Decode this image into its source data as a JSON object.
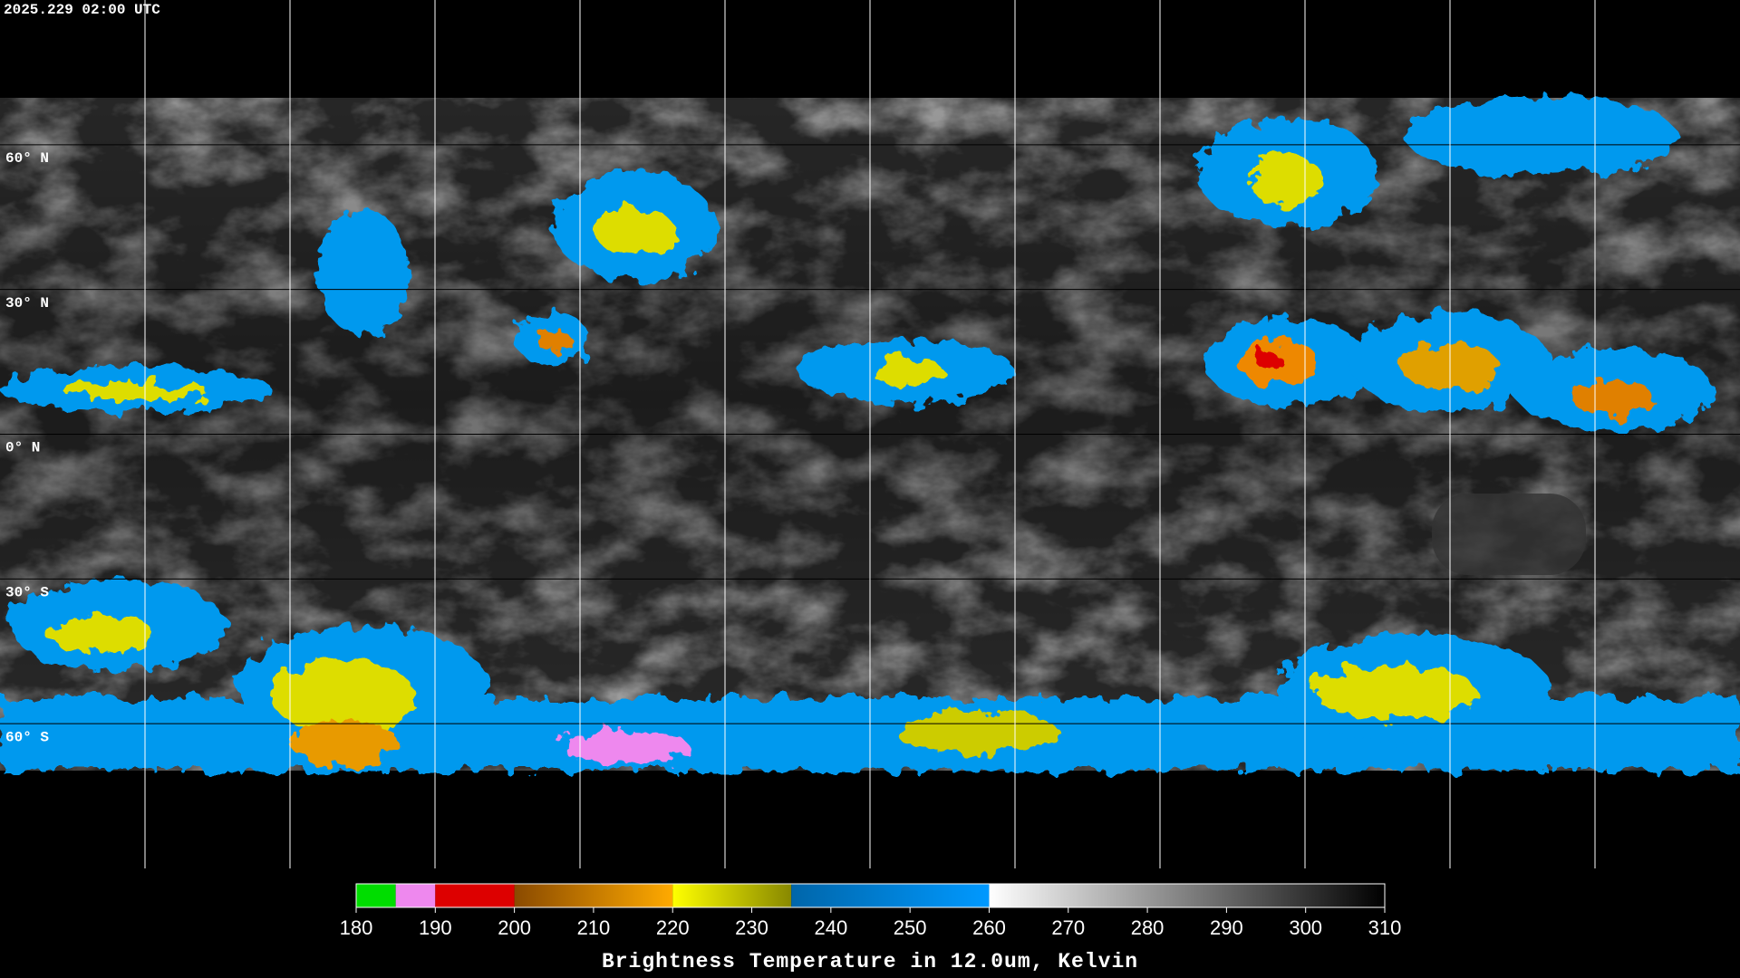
{
  "header": {
    "timestamp": "2025.229 02:00 UTC"
  },
  "map": {
    "latitude_labels": [
      "60° N",
      "30° N",
      "0° N",
      "30° S",
      "60° S"
    ]
  },
  "colorbar": {
    "title": "Brightness Temperature in 12.0um, Kelvin",
    "range": [
      180,
      310
    ],
    "ticks": [
      180,
      190,
      200,
      210,
      220,
      230,
      240,
      250,
      260,
      270,
      280,
      290,
      300,
      310
    ],
    "segments": [
      {
        "from": 180,
        "to": 185,
        "colors": [
          "#00dd00",
          "#00dd00"
        ]
      },
      {
        "from": 185,
        "to": 190,
        "colors": [
          "#ee88ee",
          "#ee88ee"
        ]
      },
      {
        "from": 190,
        "to": 200,
        "colors": [
          "#dd0000",
          "#dd0000"
        ]
      },
      {
        "from": 200,
        "to": 220,
        "colors": [
          "#8a4a00",
          "#ffaa00"
        ]
      },
      {
        "from": 220,
        "to": 235,
        "colors": [
          "#ffff00",
          "#888800"
        ]
      },
      {
        "from": 235,
        "to": 260,
        "colors": [
          "#0066aa",
          "#0099ff"
        ]
      },
      {
        "from": 260,
        "to": 310,
        "colors": [
          "#ffffff",
          "#000000"
        ]
      }
    ]
  }
}
